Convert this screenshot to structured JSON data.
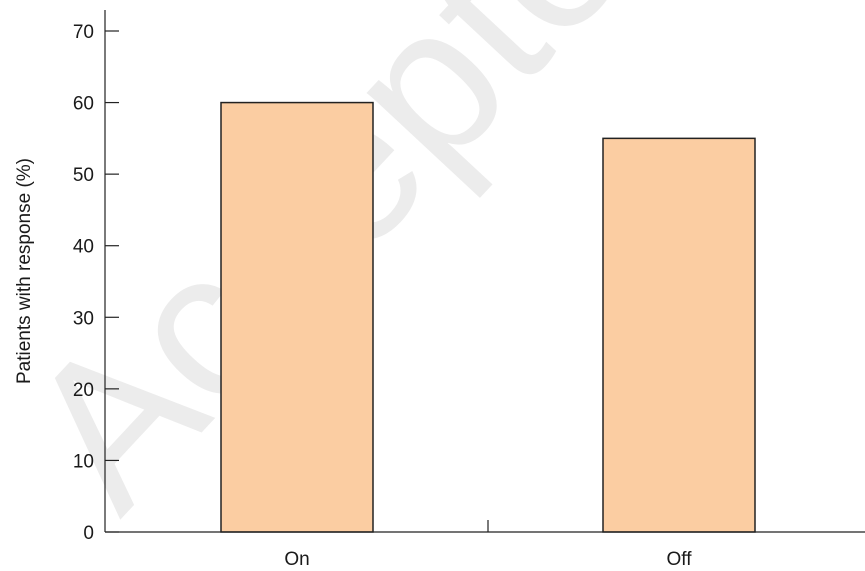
{
  "watermark": "Accepted M",
  "chart_data": {
    "type": "bar",
    "categories": [
      "On",
      "Off"
    ],
    "values": [
      60,
      55
    ],
    "title": "",
    "xlabel": "",
    "ylabel": "Patients with response (%)",
    "ylim": [
      0,
      70
    ],
    "yticks": [
      0,
      10,
      20,
      30,
      40,
      50,
      60,
      70
    ],
    "grid": false,
    "bar_color": "#fbcda2",
    "bar_edge_color": "#222222"
  }
}
